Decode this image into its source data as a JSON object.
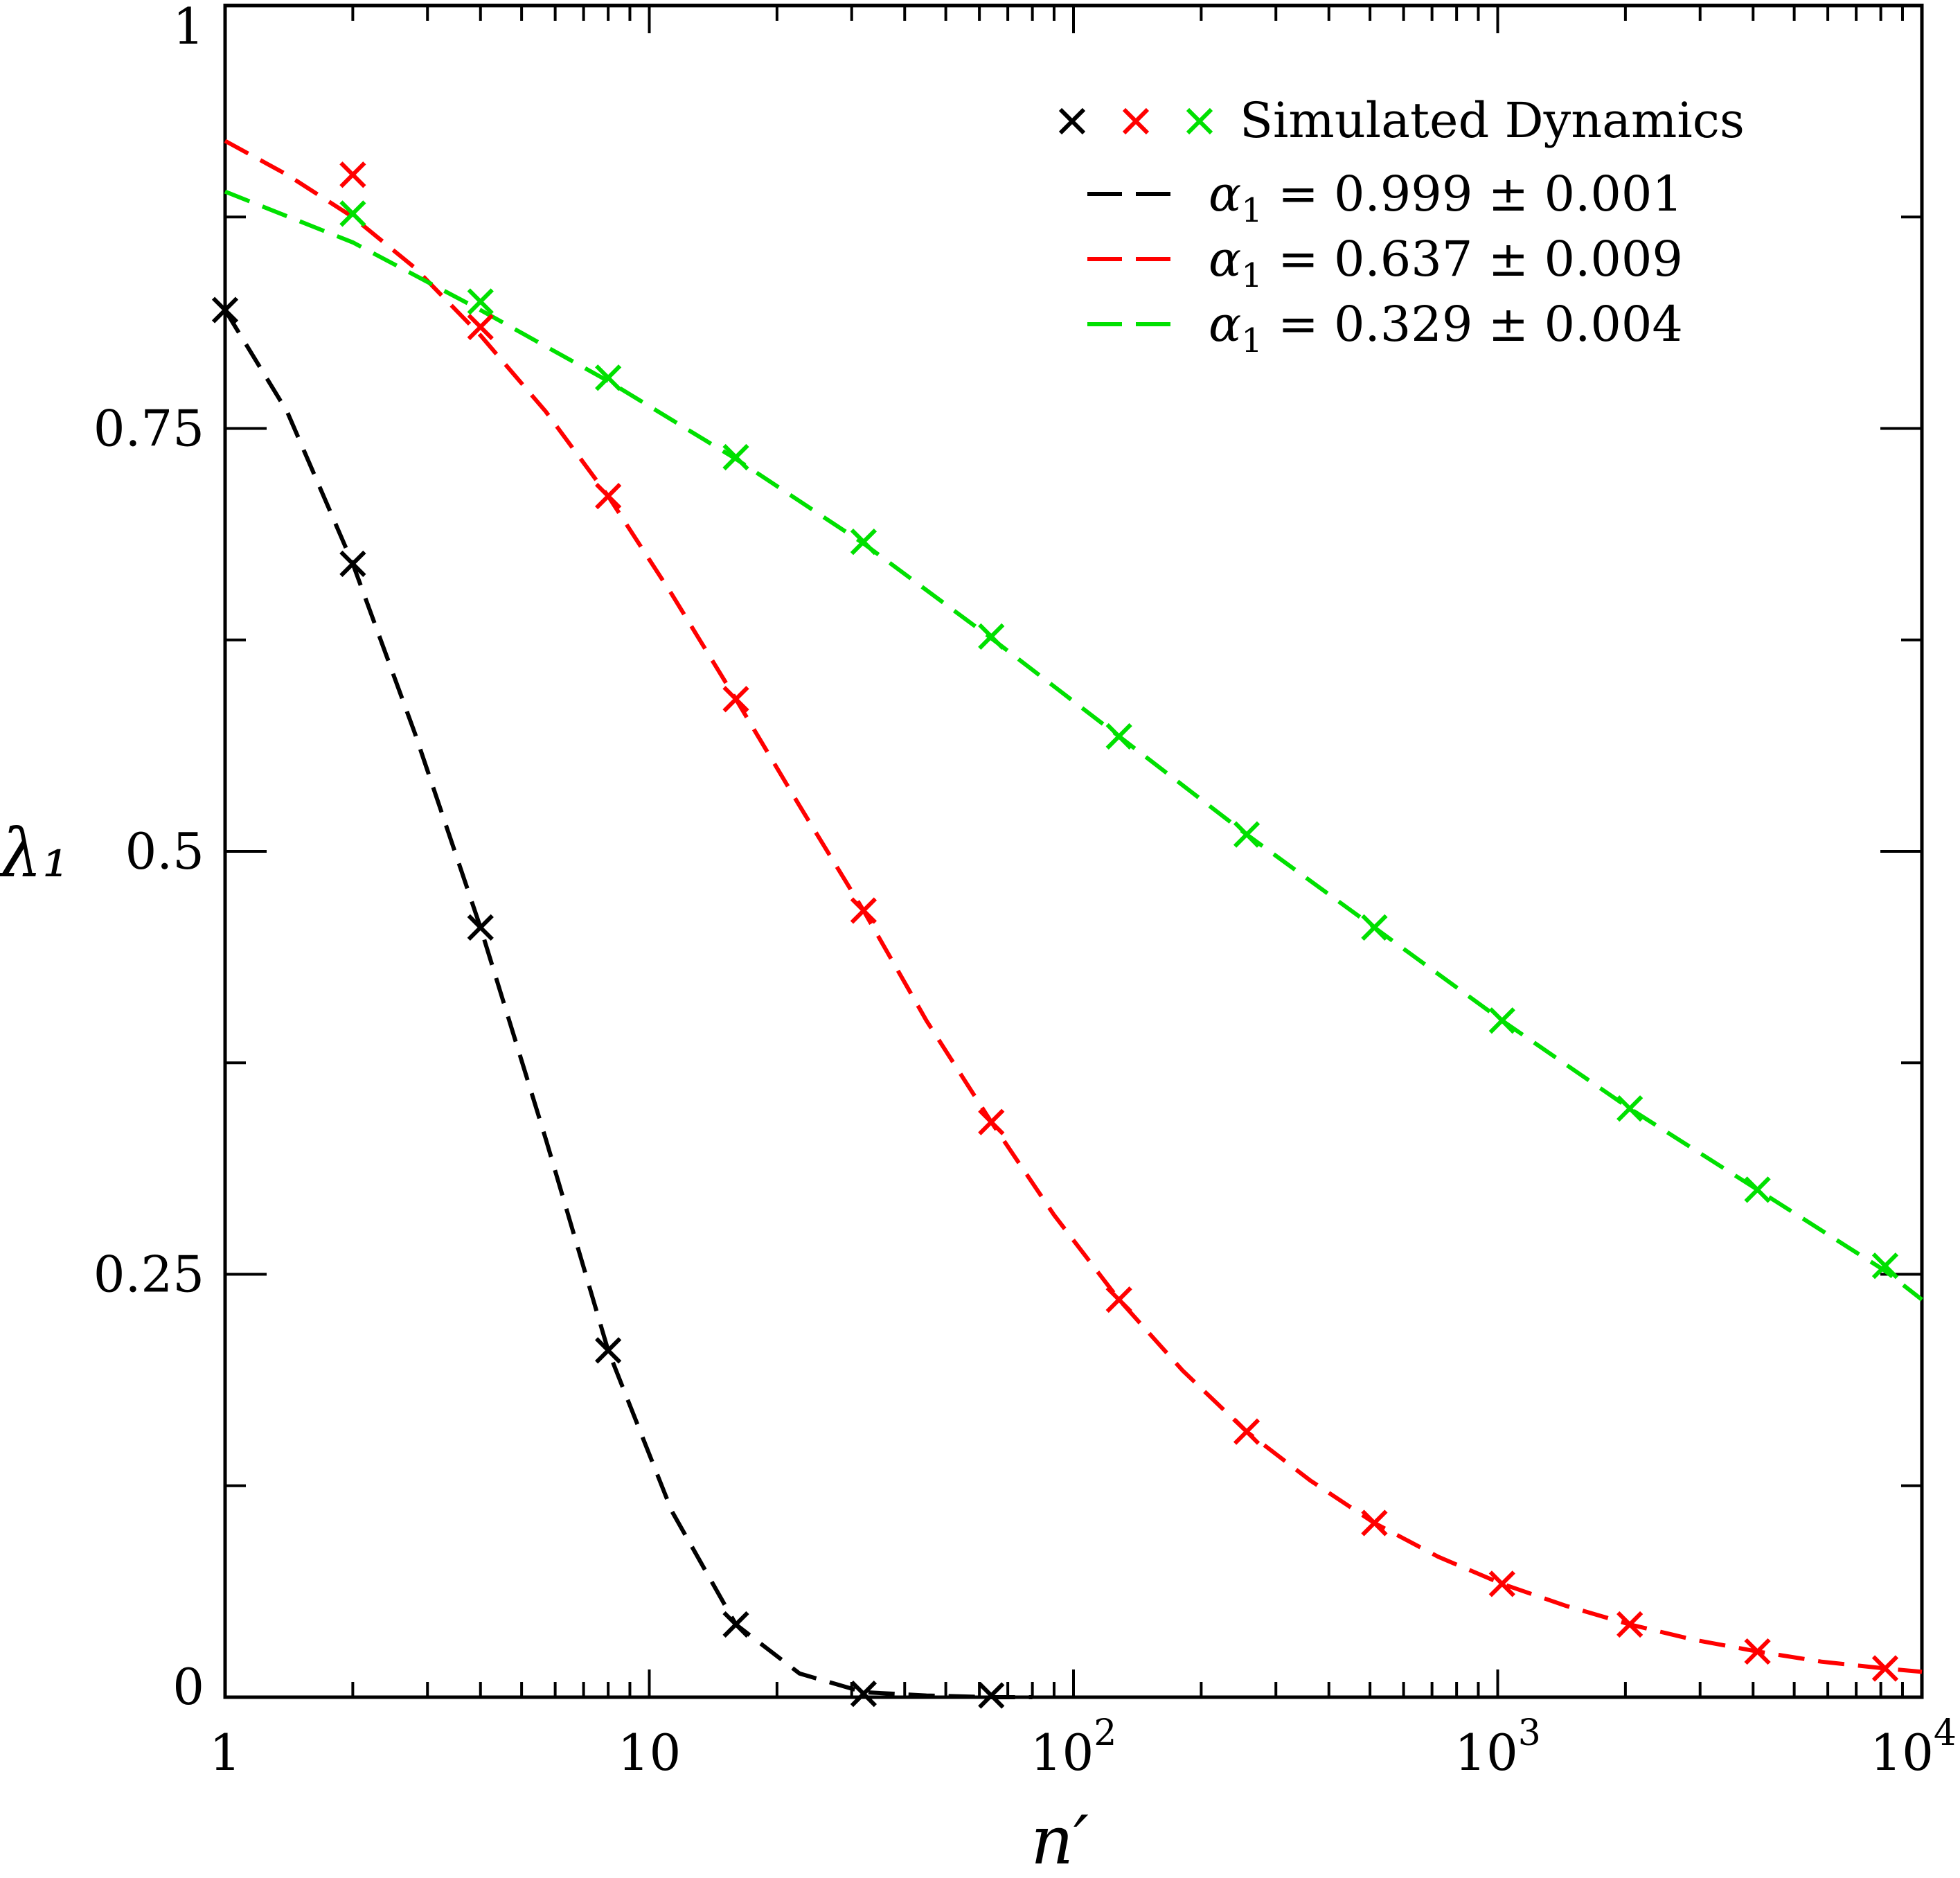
{
  "chart_data": {
    "type": "line",
    "title": "",
    "xlabel": "n′",
    "ylabel": "λ₁",
    "xscale": "log",
    "xlim": [
      1,
      10000
    ],
    "ylim": [
      0,
      1
    ],
    "x_ticks": [
      {
        "value": 1,
        "label": "1"
      },
      {
        "value": 10,
        "label": "10"
      },
      {
        "value": 100,
        "base": "10",
        "exp": "2"
      },
      {
        "value": 1000,
        "base": "10",
        "exp": "3"
      },
      {
        "value": 10000,
        "base": "10",
        "exp": "4"
      }
    ],
    "y_ticks": [
      {
        "value": 0,
        "label": "0"
      },
      {
        "value": 0.25,
        "label": "0.25"
      },
      {
        "value": 0.5,
        "label": "0.5"
      },
      {
        "value": 0.75,
        "label": "0.75"
      },
      {
        "value": 1,
        "label": "1"
      }
    ],
    "legend": {
      "position": "top-right",
      "markers_label": "Simulated Dynamics",
      "fits": [
        {
          "symbol": "α",
          "sub": "1",
          "text": " = 0.999 ± 0.001",
          "color": "#000000"
        },
        {
          "symbol": "α",
          "sub": "1",
          "text": " = 0.637 ± 0.009",
          "color": "#ff0000"
        },
        {
          "symbol": "α",
          "sub": "1",
          "text": " = 0.329 ± 0.004",
          "color": "#00e000"
        }
      ]
    },
    "series": [
      {
        "name": "Simulated Dynamics (α₁ = 0.999)",
        "color": "#000000",
        "x": [
          1,
          2,
          4,
          8,
          16,
          32,
          64
        ],
        "y": [
          0.82,
          0.67,
          0.455,
          0.205,
          0.043,
          0.002,
          0.001
        ]
      },
      {
        "name": "Simulated Dynamics (α₁ = 0.637)",
        "color": "#ff0000",
        "x": [
          2,
          4,
          8,
          16,
          32,
          64,
          128,
          256,
          512,
          1024,
          2048,
          4096,
          8192
        ],
        "y": [
          0.9,
          0.81,
          0.71,
          0.59,
          0.465,
          0.34,
          0.235,
          0.157,
          0.103,
          0.067,
          0.043,
          0.027,
          0.017
        ]
      },
      {
        "name": "Simulated Dynamics (α₁ = 0.329)",
        "color": "#00e000",
        "x": [
          2,
          4,
          8,
          16,
          32,
          64,
          128,
          256,
          512,
          1024,
          2048,
          4096,
          8192
        ],
        "y": [
          0.877,
          0.825,
          0.78,
          0.733,
          0.683,
          0.627,
          0.568,
          0.51,
          0.455,
          0.4,
          0.348,
          0.3,
          0.255
        ]
      }
    ],
    "fits": [
      {
        "name": "α₁ = 0.999 ± 0.001",
        "color": "#000000",
        "x": [
          1,
          1.4,
          2,
          2.8,
          4,
          5.7,
          8,
          11.3,
          16,
          22.6,
          32,
          45,
          64,
          80
        ],
        "y": [
          0.82,
          0.76,
          0.67,
          0.57,
          0.455,
          0.33,
          0.205,
          0.11,
          0.043,
          0.014,
          0.003,
          0.001,
          0.0,
          0.0
        ]
      },
      {
        "name": "α₁ = 0.637 ± 0.009",
        "color": "#ff0000",
        "x": [
          1,
          1.4,
          2,
          2.8,
          4,
          5.7,
          8,
          11.3,
          16,
          22.6,
          32,
          45,
          64,
          90,
          128,
          181,
          256,
          362,
          512,
          724,
          1024,
          1448,
          2048,
          2896,
          4096,
          5793,
          8192,
          10000
        ],
        "y": [
          0.92,
          0.9,
          0.875,
          0.845,
          0.805,
          0.76,
          0.71,
          0.652,
          0.59,
          0.527,
          0.465,
          0.4,
          0.34,
          0.285,
          0.235,
          0.193,
          0.157,
          0.128,
          0.103,
          0.083,
          0.067,
          0.054,
          0.043,
          0.034,
          0.027,
          0.021,
          0.017,
          0.015
        ]
      },
      {
        "name": "α₁ = 0.329 ± 0.004",
        "color": "#00e000",
        "x": [
          1,
          2,
          4,
          8,
          16,
          32,
          64,
          128,
          256,
          512,
          1024,
          2048,
          4096,
          8192,
          10000
        ],
        "y": [
          0.89,
          0.86,
          0.82,
          0.778,
          0.732,
          0.682,
          0.626,
          0.568,
          0.51,
          0.455,
          0.4,
          0.348,
          0.3,
          0.252,
          0.235
        ]
      }
    ]
  }
}
